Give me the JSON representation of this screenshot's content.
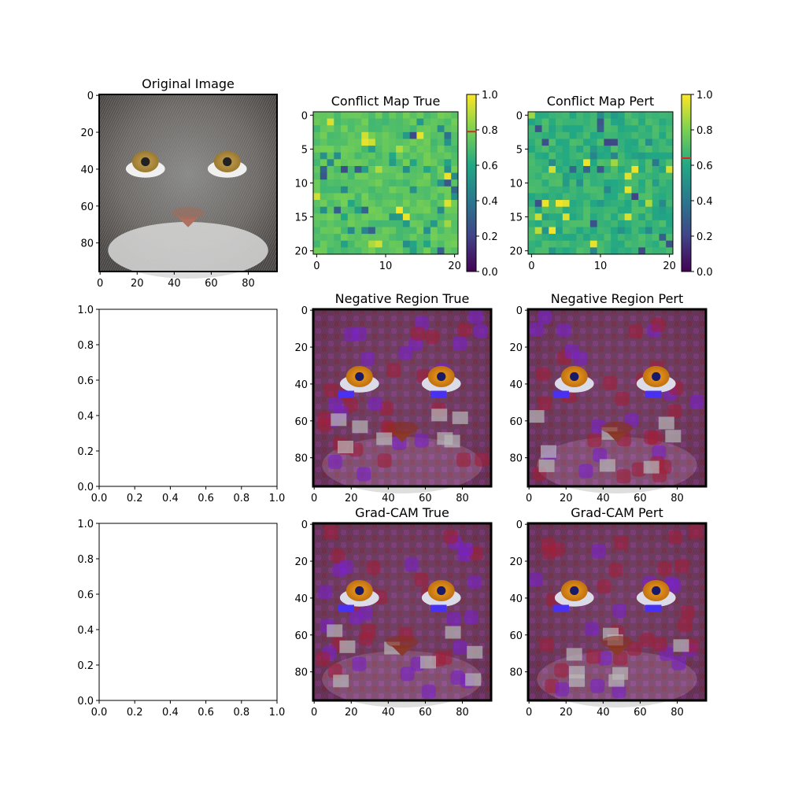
{
  "chart_data": [
    {
      "type": "image",
      "title": "Original Image",
      "xlim": [
        0,
        95
      ],
      "ylim": [
        95,
        0
      ],
      "xticks": [
        0,
        20,
        40,
        60,
        80
      ],
      "yticks": [
        0,
        20,
        40,
        60,
        80
      ],
      "image": "cat-face"
    },
    {
      "type": "heatmap",
      "title": "Conflict Map True",
      "xticks": [
        0,
        10,
        20
      ],
      "yticks": [
        0,
        5,
        10,
        15,
        20
      ],
      "grid_size": 21,
      "base_value": 0.73,
      "colorbar": {
        "ticks": [
          0.0,
          0.2,
          0.4,
          0.6,
          0.8,
          1.0
        ],
        "marker": 0.79,
        "marker_color": "#d62728"
      }
    },
    {
      "type": "heatmap",
      "title": "Conflict Map Pert",
      "xticks": [
        0,
        10,
        20
      ],
      "yticks": [
        0,
        5,
        10,
        15,
        20
      ],
      "grid_size": 21,
      "base_value": 0.65,
      "colorbar": {
        "ticks": [
          0.0,
          0.2,
          0.4,
          0.6,
          0.8,
          1.0
        ],
        "marker": 0.64,
        "marker_color": "#d62728"
      }
    },
    {
      "type": "empty",
      "title": "",
      "xlim": [
        0,
        1
      ],
      "ylim": [
        0,
        1
      ],
      "xticks": [
        0.0,
        0.2,
        0.4,
        0.6,
        0.8,
        1.0
      ],
      "yticks": [
        0.0,
        0.2,
        0.4,
        0.6,
        0.8,
        1.0
      ]
    },
    {
      "type": "image",
      "title": "Negative Region True",
      "xticks": [
        0,
        20,
        40,
        60,
        80
      ],
      "yticks": [
        0,
        20,
        40,
        60,
        80
      ],
      "image": "cat-face-overlay"
    },
    {
      "type": "image",
      "title": "Negative Region Pert",
      "xticks": [
        0,
        20,
        40,
        60,
        80
      ],
      "yticks": [
        0,
        20,
        40,
        60,
        80
      ],
      "image": "cat-face-overlay"
    },
    {
      "type": "empty",
      "title": "",
      "xlim": [
        0,
        1
      ],
      "ylim": [
        0,
        1
      ],
      "xticks": [
        0.0,
        0.2,
        0.4,
        0.6,
        0.8,
        1.0
      ],
      "yticks": [
        0.0,
        0.2,
        0.4,
        0.6,
        0.8,
        1.0
      ]
    },
    {
      "type": "image",
      "title": "Grad-CAM True",
      "xticks": [
        0,
        20,
        40,
        60,
        80
      ],
      "yticks": [
        0,
        20,
        40,
        60,
        80
      ],
      "image": "cat-face-overlay"
    },
    {
      "type": "image",
      "title": "Grad-CAM Pert",
      "xticks": [
        0,
        20,
        40,
        60,
        80
      ],
      "yticks": [
        0,
        20,
        40,
        60,
        80
      ],
      "image": "cat-face-overlay"
    }
  ]
}
